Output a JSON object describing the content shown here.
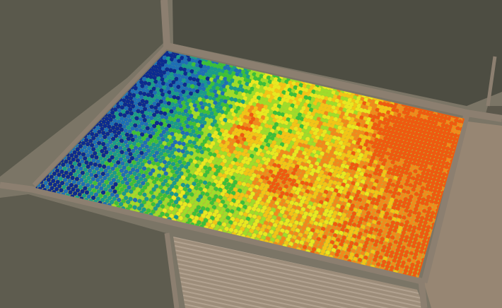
{
  "map": {
    "type": "aerial-satellite",
    "overlay": "yield-heatmap-points",
    "palette": [
      "#0c2b8f",
      "#1e6fb4",
      "#1a9b8a",
      "#3cbf3a",
      "#9fdc2a",
      "#e8e820",
      "#f2c417",
      "#f08a1c",
      "#ee5a10"
    ],
    "colors": {
      "road": "#8c7f70",
      "field_dark": "#4a4a3f",
      "field_light": "#8b7e6d",
      "field_tilled": "#a08f7c"
    }
  }
}
